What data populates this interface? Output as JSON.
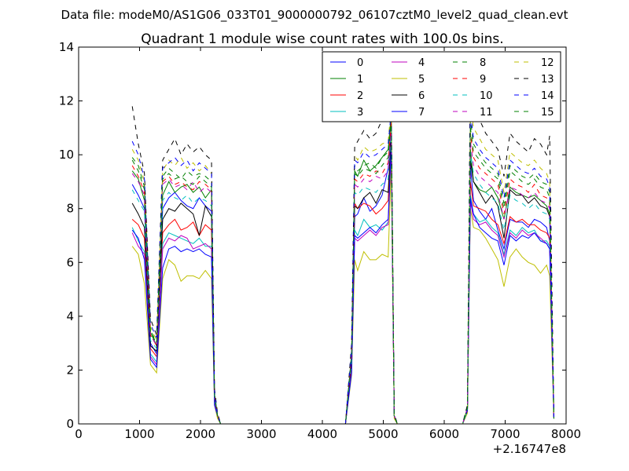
{
  "suptitle": "Data file: modeM0/AS1G06_033T01_9000000792_06107cztM0_level2_quad_clean.evt",
  "chart_data": {
    "type": "line",
    "title": "Quadrant 1 module wise count rates with 100.0s bins.",
    "xlabel": "",
    "ylabel": "",
    "x_offset_label": "+2.16747e8",
    "xlim": [
      0,
      8000
    ],
    "ylim": [
      0,
      14
    ],
    "x_ticks": [
      0,
      1000,
      2000,
      3000,
      4000,
      5000,
      6000,
      7000,
      8000
    ],
    "y_ticks": [
      0,
      2,
      4,
      6,
      8,
      10,
      12,
      14
    ],
    "grid": false,
    "legend_position": "top-right",
    "x": [
      880,
      980,
      1080,
      1180,
      1280,
      1380,
      1480,
      1580,
      1680,
      1780,
      1880,
      1980,
      2080,
      2180,
      2230,
      2280,
      2330,
      2400,
      2600,
      2800,
      3000,
      3200,
      3400,
      3600,
      3800,
      4000,
      4200,
      4380,
      4480,
      4530,
      4580,
      4680,
      4780,
      4880,
      4980,
      5080,
      5130,
      5180,
      5230,
      5300,
      5500,
      5800,
      6000,
      6200,
      6300,
      6380,
      6430,
      6480,
      6580,
      6680,
      6780,
      6880,
      6980,
      7080,
      7180,
      7280,
      7380,
      7480,
      7580,
      7680,
      7730,
      7800
    ],
    "series": [
      {
        "name": "0",
        "color": "#0000ff",
        "dash": "solid",
        "values": [
          8.9,
          8.5,
          8.0,
          3.0,
          2.6,
          8.0,
          8.4,
          8.6,
          8.3,
          8.1,
          8.0,
          8.4,
          8.1,
          7.9,
          1.0,
          0.3,
          0.0,
          0.0,
          0.0,
          0.0,
          0.0,
          0.0,
          0.0,
          0.0,
          0.0,
          0.0,
          0.0,
          0.0,
          2.5,
          7.7,
          7.8,
          8.4,
          7.9,
          8.1,
          8.5,
          9.5,
          11.0,
          0.3,
          0.0,
          0.0,
          0.0,
          0.0,
          0.0,
          0.0,
          0.0,
          0.5,
          9.6,
          8.3,
          7.9,
          7.6,
          8.0,
          7.2,
          6.5,
          7.6,
          7.5,
          7.5,
          7.3,
          7.6,
          7.5,
          7.3,
          6.8,
          0.2
        ]
      },
      {
        "name": "1",
        "color": "#008000",
        "dash": "solid",
        "values": [
          9.4,
          9.1,
          8.3,
          3.4,
          2.9,
          8.5,
          9.0,
          8.6,
          8.8,
          8.9,
          8.6,
          8.8,
          8.4,
          8.7,
          1.1,
          0.3,
          0.0,
          0.0,
          0.0,
          0.0,
          0.0,
          0.0,
          0.0,
          0.0,
          0.0,
          0.0,
          0.0,
          0.0,
          2.6,
          9.4,
          9.2,
          9.8,
          9.4,
          9.6,
          9.9,
          10.2,
          11.4,
          0.3,
          0.0,
          0.0,
          0.0,
          0.0,
          0.0,
          0.0,
          0.0,
          0.5,
          10.2,
          9.0,
          8.7,
          8.6,
          8.8,
          8.4,
          7.6,
          8.8,
          8.6,
          8.5,
          8.4,
          8.5,
          8.3,
          8.1,
          7.8,
          0.2
        ]
      },
      {
        "name": "2",
        "color": "#ff0000",
        "dash": "solid",
        "values": [
          7.6,
          7.4,
          6.9,
          2.8,
          2.5,
          7.1,
          7.4,
          7.6,
          7.2,
          7.3,
          7.5,
          7.0,
          7.4,
          7.2,
          0.9,
          0.3,
          0.0,
          0.0,
          0.0,
          0.0,
          0.0,
          0.0,
          0.0,
          0.0,
          0.0,
          0.0,
          0.0,
          0.0,
          2.3,
          8.2,
          8.0,
          8.2,
          8.1,
          7.8,
          8.0,
          8.3,
          10.6,
          0.3,
          0.0,
          0.0,
          0.0,
          0.0,
          0.0,
          0.0,
          0.0,
          0.5,
          9.0,
          8.1,
          8.0,
          7.9,
          7.6,
          7.4,
          6.7,
          7.7,
          7.5,
          7.6,
          7.4,
          7.4,
          7.2,
          7.1,
          6.9,
          0.2
        ]
      },
      {
        "name": "3",
        "color": "#00bfbf",
        "dash": "solid",
        "values": [
          7.3,
          6.8,
          6.4,
          2.6,
          2.3,
          6.7,
          7.1,
          7.0,
          6.9,
          6.8,
          6.7,
          6.9,
          6.6,
          6.6,
          0.8,
          0.3,
          0.0,
          0.0,
          0.0,
          0.0,
          0.0,
          0.0,
          0.0,
          0.0,
          0.0,
          0.0,
          0.0,
          0.0,
          2.0,
          7.2,
          7.0,
          7.6,
          7.3,
          7.4,
          7.2,
          7.5,
          10.2,
          0.3,
          0.0,
          0.0,
          0.0,
          0.0,
          0.0,
          0.0,
          0.0,
          0.5,
          8.5,
          7.8,
          7.5,
          7.6,
          7.3,
          7.1,
          6.3,
          7.2,
          7.0,
          7.3,
          7.1,
          7.2,
          6.8,
          6.8,
          6.6,
          0.2
        ]
      },
      {
        "name": "4",
        "color": "#bf00bf",
        "dash": "solid",
        "values": [
          7.1,
          6.6,
          6.3,
          2.5,
          2.2,
          6.5,
          6.9,
          6.8,
          7.0,
          6.9,
          6.5,
          6.6,
          6.7,
          6.5,
          0.8,
          0.3,
          0.0,
          0.0,
          0.0,
          0.0,
          0.0,
          0.0,
          0.0,
          0.0,
          0.0,
          0.0,
          0.0,
          0.0,
          2.0,
          6.9,
          6.8,
          7.0,
          7.2,
          7.0,
          7.3,
          7.4,
          10.0,
          0.3,
          0.0,
          0.0,
          0.0,
          0.0,
          0.0,
          0.0,
          0.0,
          0.5,
          8.3,
          7.6,
          7.4,
          7.5,
          7.2,
          7.0,
          6.2,
          7.1,
          6.9,
          7.2,
          7.0,
          7.1,
          6.9,
          6.7,
          6.5,
          0.2
        ]
      },
      {
        "name": "5",
        "color": "#bfbf00",
        "dash": "solid",
        "values": [
          6.6,
          6.3,
          5.2,
          2.2,
          1.9,
          5.4,
          6.1,
          5.9,
          5.3,
          5.5,
          5.5,
          5.4,
          5.7,
          5.4,
          0.7,
          0.2,
          0.0,
          0.0,
          0.0,
          0.0,
          0.0,
          0.0,
          0.0,
          0.0,
          0.0,
          0.0,
          0.0,
          0.0,
          1.8,
          6.1,
          5.7,
          6.4,
          6.1,
          6.1,
          6.3,
          6.2,
          9.6,
          0.2,
          0.0,
          0.0,
          0.0,
          0.0,
          0.0,
          0.0,
          0.0,
          0.4,
          8.0,
          7.3,
          7.2,
          6.9,
          6.5,
          6.1,
          5.1,
          6.2,
          6.5,
          6.2,
          6.0,
          5.9,
          5.6,
          5.9,
          5.5,
          0.2
        ]
      },
      {
        "name": "6",
        "color": "#000000",
        "dash": "solid",
        "values": [
          8.2,
          7.8,
          7.3,
          2.9,
          2.7,
          7.6,
          8.0,
          7.9,
          8.2,
          8.0,
          7.8,
          7.0,
          8.1,
          7.7,
          1.0,
          0.3,
          0.0,
          0.0,
          0.0,
          0.0,
          0.0,
          0.0,
          0.0,
          0.0,
          0.0,
          0.0,
          0.0,
          0.0,
          2.4,
          8.1,
          8.0,
          8.4,
          8.6,
          8.2,
          8.7,
          8.6,
          10.8,
          0.3,
          0.0,
          0.0,
          0.0,
          0.0,
          0.0,
          0.0,
          0.0,
          0.5,
          9.8,
          9.0,
          8.6,
          8.2,
          8.5,
          8.1,
          6.9,
          8.7,
          8.5,
          8.5,
          8.2,
          8.4,
          8.1,
          8.0,
          7.7,
          0.2
        ]
      },
      {
        "name": "7",
        "color": "#0000ff",
        "dash": "solid",
        "values": [
          7.2,
          6.9,
          6.1,
          2.4,
          2.1,
          5.8,
          6.5,
          6.6,
          6.4,
          6.5,
          6.4,
          6.5,
          6.3,
          6.2,
          0.7,
          0.3,
          0.0,
          0.0,
          0.0,
          0.0,
          0.0,
          0.0,
          0.0,
          0.0,
          0.0,
          0.0,
          0.0,
          0.0,
          1.9,
          7.0,
          6.9,
          7.1,
          7.3,
          7.1,
          7.4,
          7.6,
          10.3,
          0.3,
          0.0,
          0.0,
          0.0,
          0.0,
          0.0,
          0.0,
          0.0,
          0.5,
          8.4,
          7.8,
          7.3,
          7.1,
          6.9,
          6.8,
          5.9,
          7.0,
          6.8,
          7.0,
          6.9,
          7.1,
          6.8,
          6.7,
          6.5,
          0.2
        ]
      },
      {
        "name": "8",
        "color": "#008000",
        "dash": "dashed",
        "values": [
          9.9,
          9.6,
          8.8,
          3.5,
          3.0,
          9.2,
          9.5,
          9.3,
          9.1,
          9.4,
          9.2,
          9.3,
          9.2,
          9.0,
          1.1,
          0.3,
          0.0,
          0.0,
          0.0,
          0.0,
          0.0,
          0.0,
          0.0,
          0.0,
          0.0,
          0.0,
          0.0,
          0.0,
          2.7,
          9.6,
          9.4,
          9.6,
          9.7,
          9.5,
          9.9,
          10.1,
          11.6,
          0.3,
          0.0,
          0.0,
          0.0,
          0.0,
          0.0,
          0.0,
          0.0,
          0.6,
          11.3,
          10.4,
          10.0,
          9.7,
          9.5,
          9.3,
          8.2,
          9.6,
          9.4,
          9.2,
          9.1,
          9.3,
          9.0,
          8.9,
          8.6,
          0.2
        ]
      },
      {
        "name": "9",
        "color": "#ff0000",
        "dash": "dashed",
        "values": [
          9.6,
          9.2,
          8.6,
          3.3,
          2.9,
          9.0,
          9.2,
          8.9,
          9.0,
          8.8,
          8.7,
          9.0,
          8.9,
          8.7,
          1.1,
          0.3,
          0.0,
          0.0,
          0.0,
          0.0,
          0.0,
          0.0,
          0.0,
          0.0,
          0.0,
          0.0,
          0.0,
          0.0,
          2.6,
          9.1,
          9.0,
          9.3,
          9.2,
          9.4,
          9.3,
          9.7,
          11.2,
          0.3,
          0.0,
          0.0,
          0.0,
          0.0,
          0.0,
          0.0,
          0.0,
          0.6,
          10.8,
          9.9,
          9.5,
          9.3,
          9.1,
          8.9,
          7.8,
          9.1,
          8.9,
          8.8,
          8.6,
          8.9,
          8.5,
          8.4,
          8.2,
          0.2
        ]
      },
      {
        "name": "10",
        "color": "#00bfbf",
        "dash": "dashed",
        "values": [
          8.7,
          8.3,
          7.9,
          3.1,
          2.8,
          8.3,
          8.6,
          8.4,
          8.3,
          8.5,
          8.2,
          8.4,
          8.3,
          8.1,
          1.0,
          0.3,
          0.0,
          0.0,
          0.0,
          0.0,
          0.0,
          0.0,
          0.0,
          0.0,
          0.0,
          0.0,
          0.0,
          0.0,
          2.4,
          8.6,
          8.5,
          8.8,
          8.7,
          8.6,
          8.9,
          9.1,
          10.9,
          0.3,
          0.0,
          0.0,
          0.0,
          0.0,
          0.0,
          0.0,
          0.0,
          0.5,
          10.1,
          9.3,
          8.9,
          8.6,
          8.4,
          8.2,
          7.2,
          8.5,
          8.3,
          8.2,
          8.0,
          8.2,
          7.9,
          7.8,
          7.6,
          0.2
        ]
      },
      {
        "name": "11",
        "color": "#bf00bf",
        "dash": "dashed",
        "values": [
          9.3,
          9.0,
          8.5,
          3.3,
          2.9,
          8.9,
          9.1,
          8.8,
          8.9,
          8.7,
          9.0,
          8.6,
          8.8,
          8.6,
          1.1,
          0.3,
          0.0,
          0.0,
          0.0,
          0.0,
          0.0,
          0.0,
          0.0,
          0.0,
          0.0,
          0.0,
          0.0,
          0.0,
          2.6,
          8.9,
          8.8,
          9.1,
          9.0,
          9.2,
          9.1,
          9.4,
          11.0,
          0.3,
          0.0,
          0.0,
          0.0,
          0.0,
          0.0,
          0.0,
          0.0,
          0.6,
          10.5,
          9.6,
          9.2,
          9.0,
          8.8,
          8.6,
          7.6,
          8.8,
          8.7,
          8.5,
          8.4,
          8.6,
          8.3,
          8.2,
          8.0,
          0.2
        ]
      },
      {
        "name": "12",
        "color": "#bfbf00",
        "dash": "dashed",
        "values": [
          10.2,
          9.8,
          9.0,
          3.6,
          3.1,
          9.4,
          9.8,
          9.6,
          9.9,
          9.5,
          9.7,
          9.4,
          9.6,
          9.3,
          1.2,
          0.3,
          0.0,
          0.0,
          0.0,
          0.0,
          0.0,
          0.0,
          0.0,
          0.0,
          0.0,
          0.0,
          0.0,
          0.0,
          2.8,
          10.0,
          9.8,
          10.3,
          10.1,
          10.2,
          10.4,
          10.5,
          11.8,
          0.3,
          0.0,
          0.0,
          0.0,
          0.0,
          0.0,
          0.0,
          0.0,
          0.6,
          12.0,
          11.0,
          10.6,
          10.2,
          10.0,
          9.8,
          8.6,
          10.1,
          9.9,
          9.7,
          9.6,
          9.8,
          9.5,
          9.3,
          9.0,
          0.2
        ]
      },
      {
        "name": "13",
        "color": "#000000",
        "dash": "dashed",
        "values": [
          11.8,
          10.4,
          9.3,
          3.9,
          3.3,
          9.8,
          10.2,
          10.6,
          10.0,
          10.4,
          10.1,
          10.3,
          10.0,
          9.8,
          1.3,
          0.4,
          0.0,
          0.0,
          0.0,
          0.0,
          0.0,
          0.0,
          0.0,
          0.0,
          0.0,
          0.0,
          0.0,
          0.0,
          3.0,
          10.3,
          10.5,
          10.9,
          10.6,
          10.8,
          11.3,
          11.5,
          12.0,
          0.4,
          0.0,
          0.0,
          0.0,
          0.0,
          0.0,
          0.0,
          0.0,
          0.7,
          13.5,
          11.9,
          11.3,
          10.8,
          10.5,
          10.2,
          9.2,
          10.8,
          10.5,
          10.3,
          10.1,
          10.6,
          10.4,
          10.0,
          10.7,
          0.2
        ]
      },
      {
        "name": "14",
        "color": "#0000ff",
        "dash": "dashed",
        "values": [
          10.5,
          10.0,
          9.1,
          3.7,
          3.2,
          9.5,
          9.7,
          9.9,
          9.6,
          9.8,
          9.4,
          9.7,
          9.5,
          9.3,
          1.2,
          0.3,
          0.0,
          0.0,
          0.0,
          0.0,
          0.0,
          0.0,
          0.0,
          0.0,
          0.0,
          0.0,
          0.0,
          0.0,
          2.8,
          9.8,
          9.7,
          10.1,
          9.9,
          10.0,
          10.2,
          10.4,
          11.6,
          0.3,
          0.0,
          0.0,
          0.0,
          0.0,
          0.0,
          0.0,
          0.0,
          0.6,
          11.6,
          10.6,
          10.2,
          9.9,
          9.7,
          9.5,
          8.4,
          9.8,
          9.6,
          9.4,
          9.3,
          9.5,
          9.2,
          9.1,
          8.8,
          0.2
        ]
      },
      {
        "name": "15",
        "color": "#008000",
        "dash": "dashed",
        "values": [
          9.8,
          9.4,
          8.7,
          3.4,
          3.0,
          9.1,
          9.3,
          9.1,
          9.2,
          9.0,
          8.9,
          9.2,
          9.0,
          8.8,
          1.1,
          0.3,
          0.0,
          0.0,
          0.0,
          0.0,
          0.0,
          0.0,
          0.0,
          0.0,
          0.0,
          0.0,
          0.0,
          0.0,
          2.6,
          9.3,
          9.2,
          9.5,
          9.4,
          9.3,
          9.6,
          9.9,
          11.3,
          0.3,
          0.0,
          0.0,
          0.0,
          0.0,
          0.0,
          0.0,
          0.0,
          0.6,
          11.0,
          10.1,
          9.8,
          9.5,
          9.3,
          9.1,
          8.0,
          9.4,
          9.2,
          9.0,
          8.9,
          9.1,
          8.8,
          8.7,
          8.4,
          0.2
        ]
      }
    ]
  }
}
